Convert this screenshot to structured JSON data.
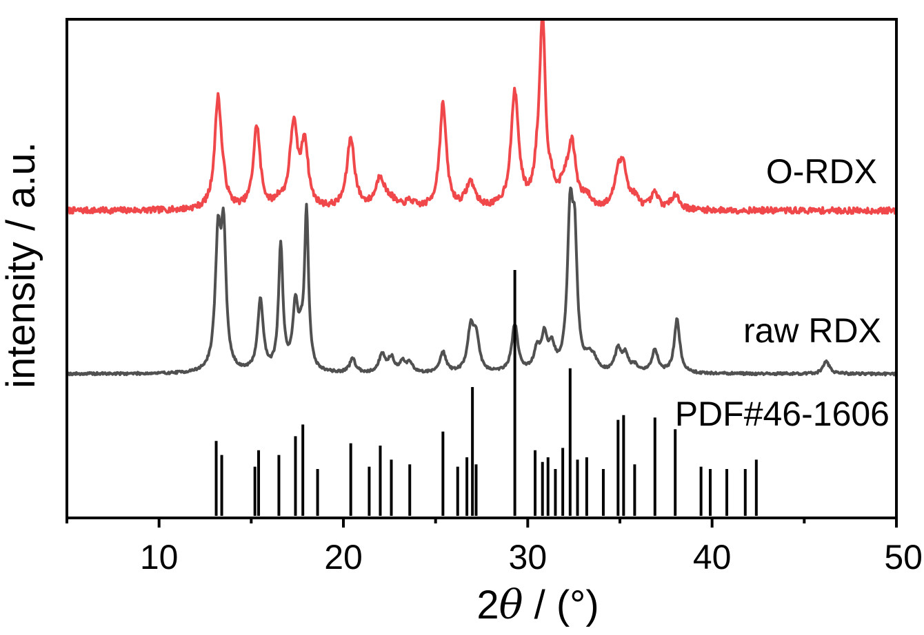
{
  "chart_data": {
    "type": "line",
    "xlabel_prefix": "2",
    "xlabel_symbol": "θ",
    "xlabel_suffix": " / (°)",
    "ylabel": "intensity / a.u.",
    "xlim": [
      5,
      50
    ],
    "x_ticks": [
      10,
      20,
      30,
      40,
      50
    ],
    "x_tick_labels": [
      "10",
      "20",
      "30",
      "40",
      "50"
    ],
    "y_ticks_visible": false,
    "grid": false,
    "legend": "inline labels at right",
    "series": [
      {
        "name": "O-RDX",
        "color": "#f0484a",
        "kind": "pattern",
        "baseline": 0.0,
        "noise": 0.35,
        "noise_seed": 7,
        "peaks": [
          {
            "x": 13.2,
            "h": 6.4,
            "w": 0.22
          },
          {
            "x": 13.5,
            "h": 0.6,
            "w": 0.2
          },
          {
            "x": 15.3,
            "h": 4.8,
            "w": 0.22
          },
          {
            "x": 16.5,
            "h": 0.4,
            "w": 0.2
          },
          {
            "x": 17.3,
            "h": 4.8,
            "w": 0.25
          },
          {
            "x": 17.9,
            "h": 3.7,
            "w": 0.22
          },
          {
            "x": 20.4,
            "h": 4.1,
            "w": 0.25
          },
          {
            "x": 22.0,
            "h": 1.8,
            "w": 0.3
          },
          {
            "x": 22.6,
            "h": 0.4,
            "w": 0.3
          },
          {
            "x": 23.6,
            "h": 0.4,
            "w": 0.3
          },
          {
            "x": 25.4,
            "h": 6.1,
            "w": 0.22
          },
          {
            "x": 26.9,
            "h": 1.5,
            "w": 0.3
          },
          {
            "x": 29.3,
            "h": 6.7,
            "w": 0.25
          },
          {
            "x": 30.5,
            "h": 1.3,
            "w": 0.2
          },
          {
            "x": 30.8,
            "h": 11.0,
            "w": 0.18
          },
          {
            "x": 31.3,
            "h": 0.9,
            "w": 0.25
          },
          {
            "x": 32.0,
            "h": 1.1,
            "w": 0.3
          },
          {
            "x": 32.4,
            "h": 3.5,
            "w": 0.25
          },
          {
            "x": 33.2,
            "h": 0.6,
            "w": 0.25
          },
          {
            "x": 34.9,
            "h": 1.8,
            "w": 0.25
          },
          {
            "x": 35.2,
            "h": 2.1,
            "w": 0.22
          },
          {
            "x": 35.8,
            "h": 0.6,
            "w": 0.25
          },
          {
            "x": 36.9,
            "h": 0.9,
            "w": 0.25
          },
          {
            "x": 38.0,
            "h": 0.9,
            "w": 0.25
          }
        ]
      },
      {
        "name": "raw RDX",
        "color": "#505050",
        "kind": "pattern",
        "baseline": 0.0,
        "noise": 0.12,
        "noise_seed": 19,
        "peaks": [
          {
            "x": 13.2,
            "h": 6.2,
            "w": 0.18
          },
          {
            "x": 13.5,
            "h": 6.3,
            "w": 0.16
          },
          {
            "x": 15.5,
            "h": 3.5,
            "w": 0.18
          },
          {
            "x": 16.6,
            "h": 6.1,
            "w": 0.14
          },
          {
            "x": 17.4,
            "h": 3.1,
            "w": 0.18
          },
          {
            "x": 17.7,
            "h": 1.0,
            "w": 0.14
          },
          {
            "x": 18.0,
            "h": 7.7,
            "w": 0.13
          },
          {
            "x": 20.5,
            "h": 0.7,
            "w": 0.18
          },
          {
            "x": 22.1,
            "h": 0.9,
            "w": 0.2
          },
          {
            "x": 22.6,
            "h": 0.7,
            "w": 0.2
          },
          {
            "x": 23.2,
            "h": 0.5,
            "w": 0.18
          },
          {
            "x": 23.6,
            "h": 0.5,
            "w": 0.18
          },
          {
            "x": 25.4,
            "h": 1.0,
            "w": 0.2
          },
          {
            "x": 26.9,
            "h": 2.0,
            "w": 0.2
          },
          {
            "x": 27.2,
            "h": 1.6,
            "w": 0.2
          },
          {
            "x": 29.3,
            "h": 2.3,
            "w": 0.2
          },
          {
            "x": 30.5,
            "h": 1.0,
            "w": 0.2
          },
          {
            "x": 30.9,
            "h": 1.6,
            "w": 0.18
          },
          {
            "x": 31.3,
            "h": 1.1,
            "w": 0.2
          },
          {
            "x": 32.3,
            "h": 7.2,
            "w": 0.18
          },
          {
            "x": 32.55,
            "h": 5.5,
            "w": 0.16
          },
          {
            "x": 33.3,
            "h": 0.6,
            "w": 0.2
          },
          {
            "x": 33.6,
            "h": 0.5,
            "w": 0.2
          },
          {
            "x": 34.9,
            "h": 1.1,
            "w": 0.2
          },
          {
            "x": 35.3,
            "h": 0.8,
            "w": 0.2
          },
          {
            "x": 35.8,
            "h": 0.3,
            "w": 0.2
          },
          {
            "x": 36.9,
            "h": 1.1,
            "w": 0.2
          },
          {
            "x": 38.1,
            "h": 2.6,
            "w": 0.18
          },
          {
            "x": 46.2,
            "h": 0.6,
            "w": 0.2
          }
        ]
      },
      {
        "name": "PDF#46-1606",
        "color": "#000000",
        "kind": "sticks",
        "sticks": [
          [
            13.1,
            3.2
          ],
          [
            13.4,
            2.6
          ],
          [
            15.2,
            2.1
          ],
          [
            15.4,
            2.8
          ],
          [
            16.5,
            2.6
          ],
          [
            17.4,
            3.4
          ],
          [
            17.8,
            3.9
          ],
          [
            18.6,
            2.0
          ],
          [
            20.4,
            3.1
          ],
          [
            21.4,
            2.1
          ],
          [
            22.0,
            3.0
          ],
          [
            22.6,
            2.4
          ],
          [
            23.6,
            2.2
          ],
          [
            25.4,
            3.6
          ],
          [
            26.2,
            2.1
          ],
          [
            26.7,
            2.5
          ],
          [
            27.0,
            5.5
          ],
          [
            27.2,
            2.2
          ],
          [
            29.3,
            10.5
          ],
          [
            30.4,
            2.8
          ],
          [
            30.8,
            2.3
          ],
          [
            31.1,
            2.5
          ],
          [
            31.5,
            2.0
          ],
          [
            31.9,
            2.9
          ],
          [
            32.3,
            6.3
          ],
          [
            32.7,
            2.4
          ],
          [
            33.2,
            2.5
          ],
          [
            34.1,
            2.0
          ],
          [
            34.9,
            4.1
          ],
          [
            35.2,
            4.3
          ],
          [
            35.8,
            2.2
          ],
          [
            36.9,
            4.2
          ],
          [
            38.0,
            3.7
          ],
          [
            39.4,
            2.1
          ],
          [
            39.9,
            2.0
          ],
          [
            40.8,
            2.0
          ],
          [
            41.8,
            2.0
          ],
          [
            42.4,
            2.4
          ]
        ]
      }
    ]
  }
}
